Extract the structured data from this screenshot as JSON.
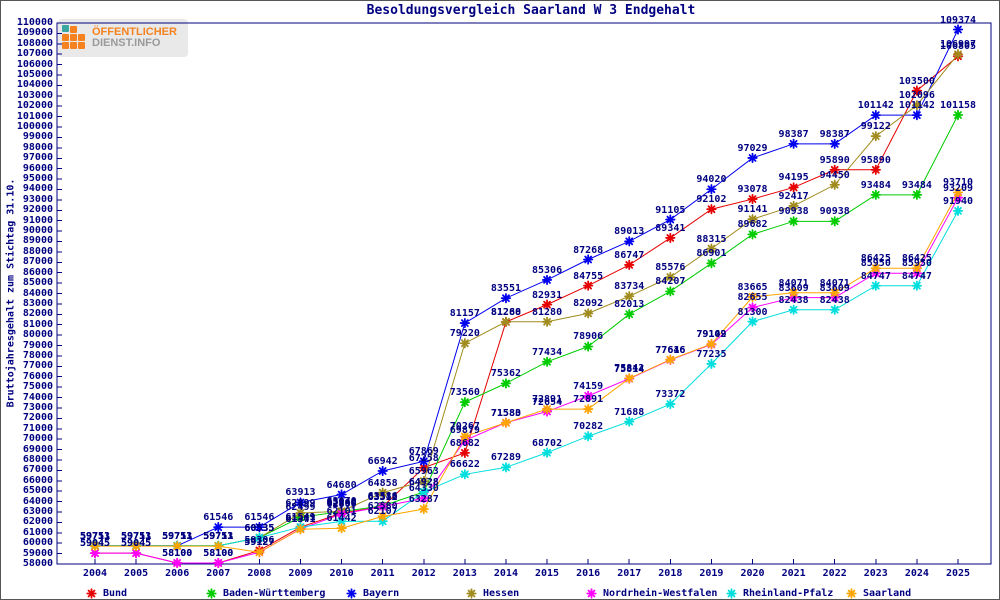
{
  "title": "Besoldungsvergleich Saarland W 3 Endgehalt",
  "logo": {
    "line1": "ÖFFENTLICHER",
    "line2": "DIENST.INFO"
  },
  "colors": {
    "text": "#000080",
    "plot_border": "#000080",
    "background": "#ffffff"
  },
  "chart_data": {
    "type": "line",
    "title": "Besoldungsvergleich Saarland W 3 Endgehalt",
    "xlabel": "",
    "ylabel": "Bruttojahresgehalt zum Stichtag 31.10.",
    "ylim": [
      58000,
      110000
    ],
    "ytick_step": 1000,
    "grid": false,
    "legend_position": "bottom",
    "marker": "asterisk",
    "point_labels": true,
    "x": [
      2004,
      2005,
      2006,
      2007,
      2008,
      2009,
      2010,
      2011,
      2012,
      2013,
      2014,
      2015,
      2016,
      2017,
      2018,
      2019,
      2020,
      2021,
      2022,
      2023,
      2024,
      2025
    ],
    "series": [
      {
        "name": "Bund",
        "color": "#e60000",
        "values": [
          59045,
          59045,
          58100,
          58100,
          59306,
          61541,
          62890,
          63512,
          67258,
          68682,
          81268,
          82931,
          84755,
          86747,
          89341,
          92102,
          93078,
          94195,
          95890,
          95890,
          103500,
          106805
        ]
      },
      {
        "name": "Baden-Württemberg",
        "color": "#00cc00",
        "values": [
          59751,
          59751,
          59751,
          59751,
          60535,
          62499,
          63040,
          63586,
          64928,
          73560,
          75362,
          77434,
          78906,
          82013,
          84207,
          86901,
          89682,
          90938,
          90938,
          93484,
          93484,
          101158
        ]
      },
      {
        "name": "Bayern",
        "color": "#0000ee",
        "values": [
          59751,
          59751,
          59751,
          61546,
          61546,
          63913,
          64680,
          66942,
          67869,
          81157,
          83551,
          85306,
          87268,
          89013,
          91105,
          94020,
          97029,
          98387,
          98387,
          101142,
          101142,
          109374
        ]
      },
      {
        "name": "Hessen",
        "color": "#a08c1e",
        "values": [
          59751,
          59751,
          59751,
          59751,
          60535,
          62899,
          63070,
          64858,
          65963,
          79220,
          81280,
          81280,
          82092,
          83734,
          85576,
          88315,
          91141,
          92417,
          94450,
          99122,
          102096,
          106997
        ]
      },
      {
        "name": "Nordrhein-Westfalen",
        "color": "#ff00ff",
        "values": [
          59045,
          59045,
          58100,
          58100,
          59127,
          61371,
          62800,
          63515,
          64330,
          69879,
          71583,
          72654,
          74159,
          75814,
          77616,
          79102,
          82655,
          83609,
          83609,
          85950,
          85950,
          93209
        ]
      },
      {
        "name": "Rheinland-Pfalz",
        "color": "#00dede",
        "values": [
          59751,
          59751,
          59751,
          59751,
          60535,
          61549,
          62101,
          62107,
          64928,
          66622,
          67289,
          68702,
          70282,
          71688,
          73372,
          77235,
          81300,
          82438,
          82438,
          84747,
          84747,
          91940
        ]
      },
      {
        "name": "Saarland",
        "color": "#ffa500",
        "values": [
          59713,
          59713,
          59713,
          59713,
          59127,
          61341,
          61442,
          62580,
          63287,
          70267,
          71580,
          72891,
          72891,
          75842,
          77646,
          79149,
          83665,
          84071,
          84071,
          86425,
          86425,
          93710
        ]
      }
    ]
  }
}
